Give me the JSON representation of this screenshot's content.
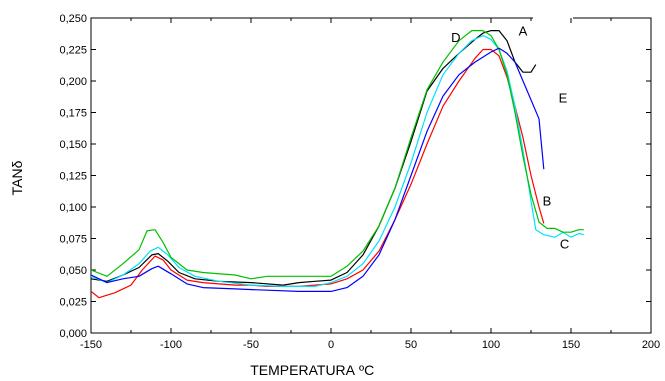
{
  "chart_data": {
    "type": "line",
    "xlabel": "TEMPERATURA",
    "xlabel_unit": "ºC",
    "ylabel": "TANδ",
    "xlim": [
      -150,
      200
    ],
    "ylim": [
      0.0,
      0.25
    ],
    "x_ticks": [
      "-150",
      "-100",
      "-50",
      "0",
      "50",
      "100",
      "150",
      "200"
    ],
    "y_ticks": [
      "0,000",
      "0,025",
      "0,050",
      "0,075",
      "0,100",
      "0,125",
      "0,150",
      "0,175",
      "0,200",
      "0,225",
      "0,250"
    ],
    "grid": false,
    "legend": "none",
    "annotations": [
      {
        "text": "A",
        "x": 120,
        "y": 0.24
      },
      {
        "text": "D",
        "x": 78,
        "y": 0.235
      },
      {
        "text": "E",
        "x": 145,
        "y": 0.187
      },
      {
        "text": "B",
        "x": 135,
        "y": 0.105
      },
      {
        "text": "C",
        "x": 146,
        "y": 0.071
      }
    ],
    "series": [
      {
        "label": "A",
        "color": "#000000",
        "points": [
          [
            -150,
            0.043
          ],
          [
            -140,
            0.041
          ],
          [
            -130,
            0.046
          ],
          [
            -120,
            0.052
          ],
          [
            -112,
            0.062
          ],
          [
            -108,
            0.063
          ],
          [
            -102,
            0.057
          ],
          [
            -95,
            0.048
          ],
          [
            -85,
            0.043
          ],
          [
            -70,
            0.041
          ],
          [
            -50,
            0.04
          ],
          [
            -30,
            0.038
          ],
          [
            -20,
            0.04
          ],
          [
            -10,
            0.041
          ],
          [
            0,
            0.042
          ],
          [
            10,
            0.048
          ],
          [
            20,
            0.062
          ],
          [
            30,
            0.085
          ],
          [
            40,
            0.115
          ],
          [
            50,
            0.152
          ],
          [
            60,
            0.192
          ],
          [
            70,
            0.21
          ],
          [
            80,
            0.222
          ],
          [
            90,
            0.233
          ],
          [
            95,
            0.238
          ],
          [
            100,
            0.24
          ],
          [
            105,
            0.24
          ],
          [
            110,
            0.232
          ],
          [
            115,
            0.215
          ],
          [
            120,
            0.207
          ],
          [
            125,
            0.207
          ],
          [
            128,
            0.213
          ]
        ]
      },
      {
        "label": "B",
        "color": "#ff0000",
        "points": [
          [
            -150,
            0.033
          ],
          [
            -145,
            0.028
          ],
          [
            -135,
            0.032
          ],
          [
            -125,
            0.038
          ],
          [
            -118,
            0.05
          ],
          [
            -110,
            0.061
          ],
          [
            -105,
            0.058
          ],
          [
            -100,
            0.05
          ],
          [
            -90,
            0.042
          ],
          [
            -80,
            0.04
          ],
          [
            -60,
            0.038
          ],
          [
            -50,
            0.038
          ],
          [
            -40,
            0.037
          ],
          [
            -20,
            0.037
          ],
          [
            0,
            0.039
          ],
          [
            10,
            0.043
          ],
          [
            20,
            0.05
          ],
          [
            30,
            0.065
          ],
          [
            40,
            0.09
          ],
          [
            50,
            0.118
          ],
          [
            60,
            0.15
          ],
          [
            70,
            0.18
          ],
          [
            80,
            0.2
          ],
          [
            90,
            0.218
          ],
          [
            95,
            0.225
          ],
          [
            100,
            0.225
          ],
          [
            105,
            0.22
          ],
          [
            110,
            0.203
          ],
          [
            115,
            0.18
          ],
          [
            120,
            0.155
          ],
          [
            125,
            0.125
          ],
          [
            130,
            0.1
          ],
          [
            133,
            0.087
          ]
        ]
      },
      {
        "label": "C",
        "color": "#00e0ff",
        "points": [
          [
            -150,
            0.045
          ],
          [
            -140,
            0.04
          ],
          [
            -130,
            0.046
          ],
          [
            -120,
            0.055
          ],
          [
            -113,
            0.065
          ],
          [
            -108,
            0.068
          ],
          [
            -102,
            0.062
          ],
          [
            -95,
            0.052
          ],
          [
            -85,
            0.045
          ],
          [
            -70,
            0.041
          ],
          [
            -50,
            0.038
          ],
          [
            -30,
            0.037
          ],
          [
            -10,
            0.037
          ],
          [
            0,
            0.04
          ],
          [
            10,
            0.045
          ],
          [
            20,
            0.055
          ],
          [
            30,
            0.073
          ],
          [
            40,
            0.1
          ],
          [
            50,
            0.135
          ],
          [
            60,
            0.175
          ],
          [
            70,
            0.205
          ],
          [
            80,
            0.222
          ],
          [
            88,
            0.232
          ],
          [
            95,
            0.236
          ],
          [
            100,
            0.233
          ],
          [
            105,
            0.225
          ],
          [
            110,
            0.208
          ],
          [
            115,
            0.18
          ],
          [
            120,
            0.145
          ],
          [
            125,
            0.105
          ],
          [
            128,
            0.082
          ],
          [
            133,
            0.078
          ],
          [
            140,
            0.076
          ],
          [
            145,
            0.08
          ],
          [
            150,
            0.076
          ],
          [
            155,
            0.079
          ],
          [
            158,
            0.078
          ]
        ]
      },
      {
        "label": "D",
        "color": "#00c000",
        "points": [
          [
            -150,
            0.05
          ],
          [
            -140,
            0.045
          ],
          [
            -130,
            0.055
          ],
          [
            -120,
            0.066
          ],
          [
            -115,
            0.081
          ],
          [
            -110,
            0.082
          ],
          [
            -105,
            0.072
          ],
          [
            -100,
            0.06
          ],
          [
            -90,
            0.05
          ],
          [
            -80,
            0.048
          ],
          [
            -60,
            0.046
          ],
          [
            -50,
            0.043
          ],
          [
            -40,
            0.045
          ],
          [
            -20,
            0.045
          ],
          [
            0,
            0.045
          ],
          [
            10,
            0.053
          ],
          [
            20,
            0.065
          ],
          [
            30,
            0.085
          ],
          [
            40,
            0.115
          ],
          [
            50,
            0.155
          ],
          [
            60,
            0.193
          ],
          [
            70,
            0.215
          ],
          [
            80,
            0.232
          ],
          [
            88,
            0.24
          ],
          [
            95,
            0.24
          ],
          [
            100,
            0.236
          ],
          [
            105,
            0.225
          ],
          [
            110,
            0.205
          ],
          [
            115,
            0.175
          ],
          [
            120,
            0.14
          ],
          [
            125,
            0.11
          ],
          [
            130,
            0.088
          ],
          [
            135,
            0.083
          ],
          [
            140,
            0.083
          ],
          [
            145,
            0.08
          ],
          [
            150,
            0.08
          ],
          [
            155,
            0.082
          ],
          [
            158,
            0.082
          ]
        ]
      },
      {
        "label": "E",
        "color": "#0000ff",
        "points": [
          [
            -150,
            0.046
          ],
          [
            -140,
            0.04
          ],
          [
            -130,
            0.043
          ],
          [
            -120,
            0.045
          ],
          [
            -112,
            0.051
          ],
          [
            -108,
            0.053
          ],
          [
            -100,
            0.047
          ],
          [
            -90,
            0.039
          ],
          [
            -80,
            0.036
          ],
          [
            -60,
            0.035
          ],
          [
            -40,
            0.034
          ],
          [
            -20,
            0.033
          ],
          [
            -10,
            0.033
          ],
          [
            0,
            0.033
          ],
          [
            10,
            0.036
          ],
          [
            20,
            0.045
          ],
          [
            30,
            0.062
          ],
          [
            40,
            0.09
          ],
          [
            50,
            0.125
          ],
          [
            60,
            0.16
          ],
          [
            70,
            0.188
          ],
          [
            80,
            0.205
          ],
          [
            90,
            0.215
          ],
          [
            100,
            0.223
          ],
          [
            105,
            0.226
          ],
          [
            110,
            0.222
          ],
          [
            115,
            0.215
          ],
          [
            120,
            0.2
          ],
          [
            125,
            0.185
          ],
          [
            130,
            0.17
          ],
          [
            133,
            0.13
          ]
        ]
      }
    ]
  }
}
